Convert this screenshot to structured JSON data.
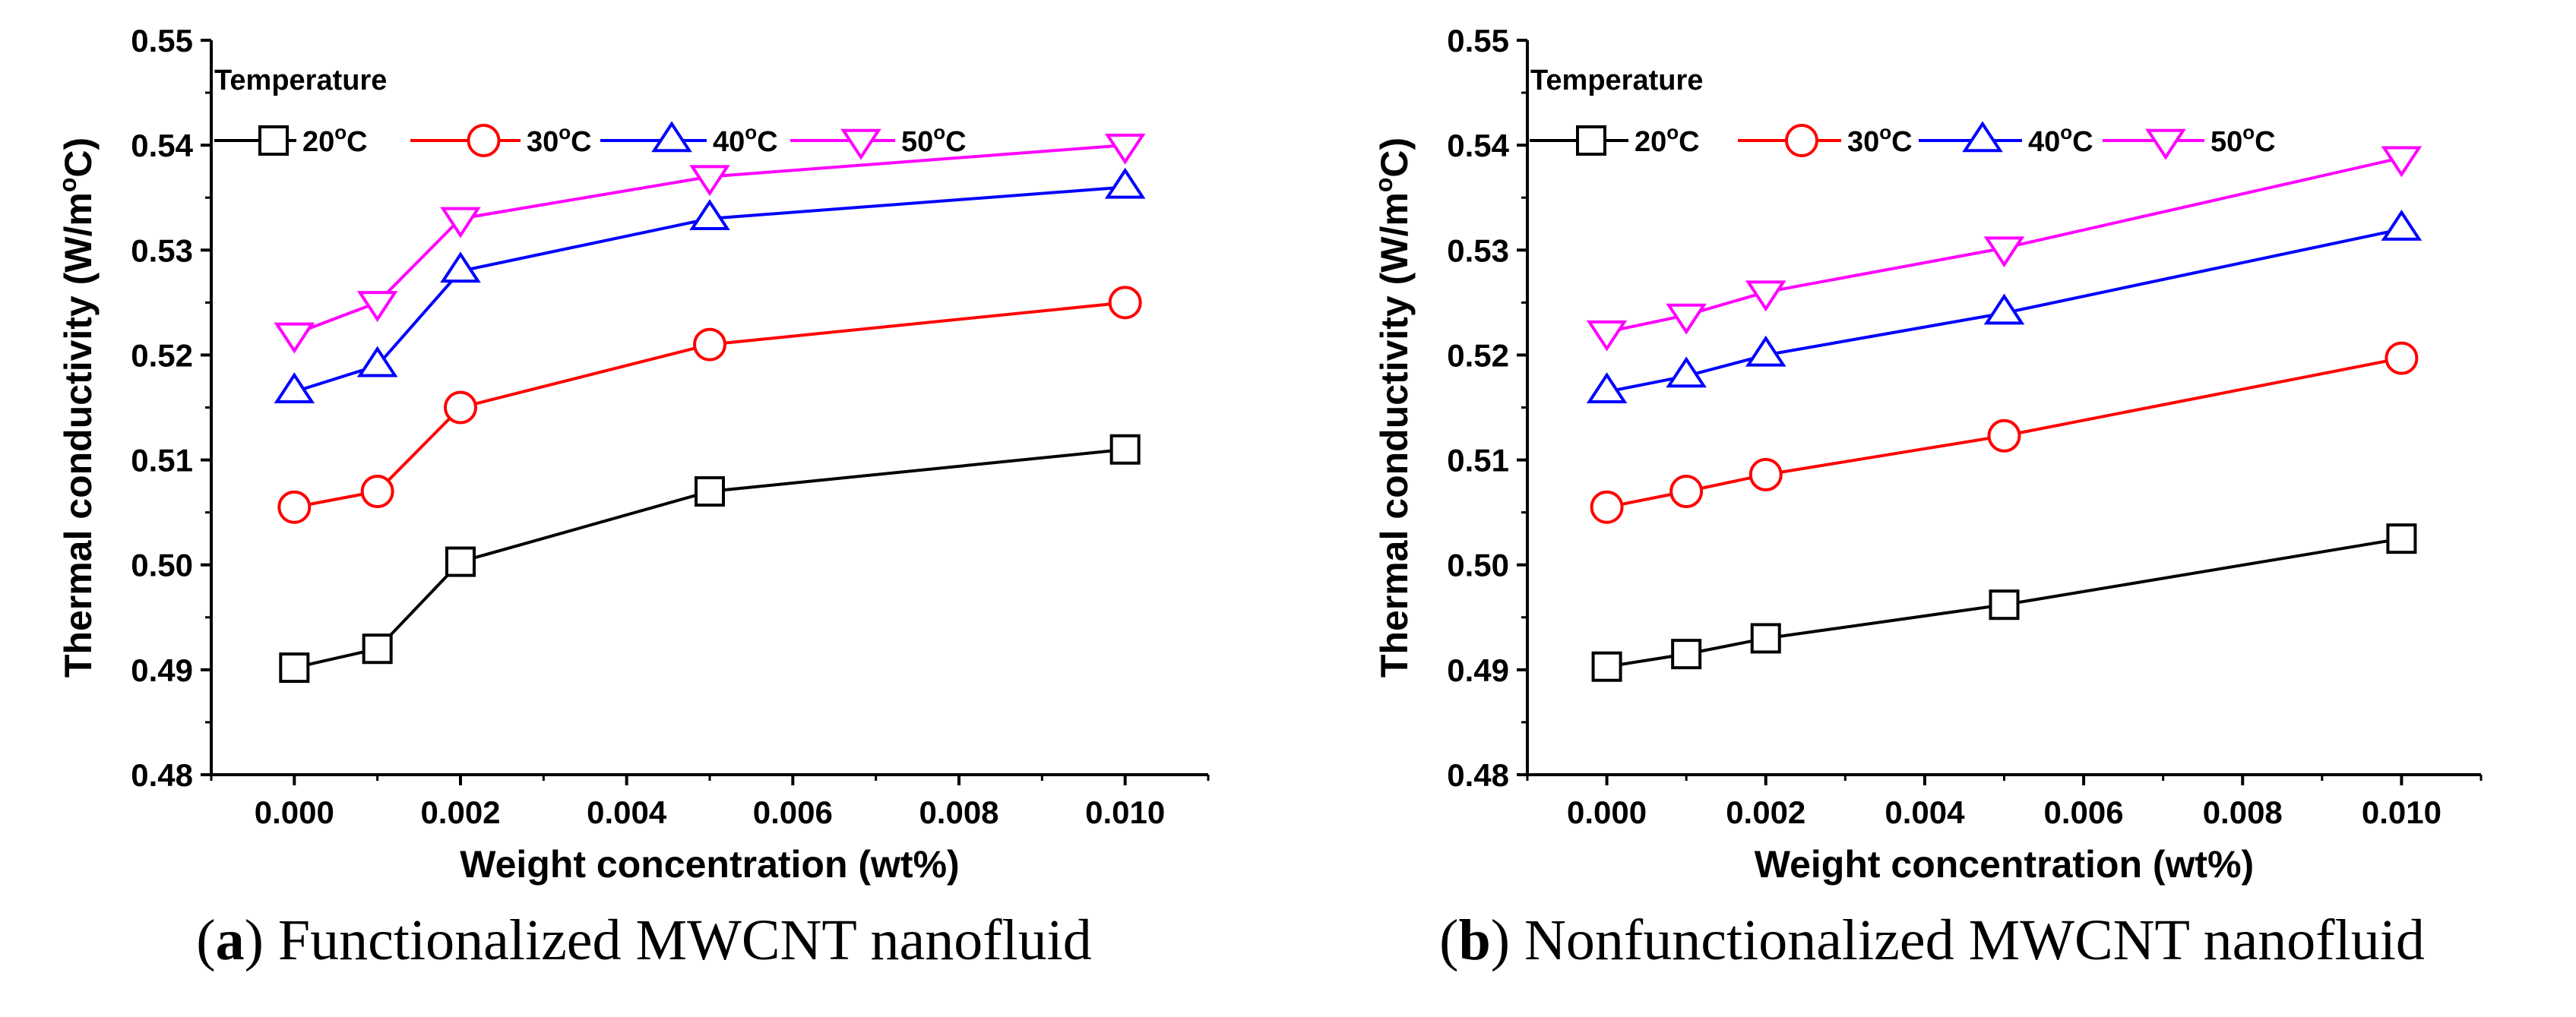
{
  "chart_data": [
    {
      "type": "line",
      "panel_label": "a",
      "caption": "Functionalized MWCNT nanofluid",
      "xlabel": "Weight concentration (wt%)",
      "ylabel": "Thermal conductivity (W/m°C)",
      "xlim": [
        -0.001,
        0.011
      ],
      "ylim": [
        0.48,
        0.55
      ],
      "x_ticks": [
        "0.000",
        "0.002",
        "0.004",
        "0.006",
        "0.008",
        "0.010"
      ],
      "y_ticks": [
        "0.48",
        "0.49",
        "0.50",
        "0.51",
        "0.52",
        "0.53",
        "0.54",
        "0.55"
      ],
      "legend_title": "Temperature",
      "x": [
        0.0,
        0.001,
        0.002,
        0.005,
        0.01
      ],
      "series": [
        {
          "name": "20°C",
          "color": "#000000",
          "marker": "square",
          "values": [
            0.4902,
            0.492,
            0.5003,
            0.507,
            0.511
          ]
        },
        {
          "name": "30°C",
          "color": "#ff0000",
          "marker": "circle",
          "values": [
            0.5055,
            0.507,
            0.515,
            0.521,
            0.525
          ]
        },
        {
          "name": "40°C",
          "color": "#0000ff",
          "marker": "triangle-up",
          "values": [
            0.5165,
            0.519,
            0.528,
            0.533,
            0.536
          ]
        },
        {
          "name": "50°C",
          "color": "#ff00ff",
          "marker": "triangle-down",
          "values": [
            0.522,
            0.525,
            0.533,
            0.537,
            0.54
          ]
        }
      ]
    },
    {
      "type": "line",
      "panel_label": "b",
      "caption": "Nonfunctionalized MWCNT nanofluid",
      "xlabel": "Weight concentration (wt%)",
      "ylabel": "Thermal conductivity (W/m°C)",
      "xlim": [
        -0.001,
        0.011
      ],
      "ylim": [
        0.48,
        0.55
      ],
      "x_ticks": [
        "0.000",
        "0.002",
        "0.004",
        "0.006",
        "0.008",
        "0.010"
      ],
      "y_ticks": [
        "0.48",
        "0.49",
        "0.50",
        "0.51",
        "0.52",
        "0.53",
        "0.54",
        "0.55"
      ],
      "legend_title": "Temperature",
      "x": [
        0.0,
        0.001,
        0.002,
        0.005,
        0.01
      ],
      "series": [
        {
          "name": "20°C",
          "color": "#000000",
          "marker": "square",
          "values": [
            0.4903,
            0.4915,
            0.493,
            0.4962,
            0.5025
          ]
        },
        {
          "name": "30°C",
          "color": "#ff0000",
          "marker": "circle",
          "values": [
            0.5055,
            0.507,
            0.5086,
            0.5123,
            0.5197
          ]
        },
        {
          "name": "40°C",
          "color": "#0000ff",
          "marker": "triangle-up",
          "values": [
            0.5165,
            0.518,
            0.52,
            0.524,
            0.532
          ]
        },
        {
          "name": "50°C",
          "color": "#ff00ff",
          "marker": "triangle-down",
          "values": [
            0.5222,
            0.5238,
            0.526,
            0.5302,
            0.5388
          ]
        }
      ]
    }
  ]
}
